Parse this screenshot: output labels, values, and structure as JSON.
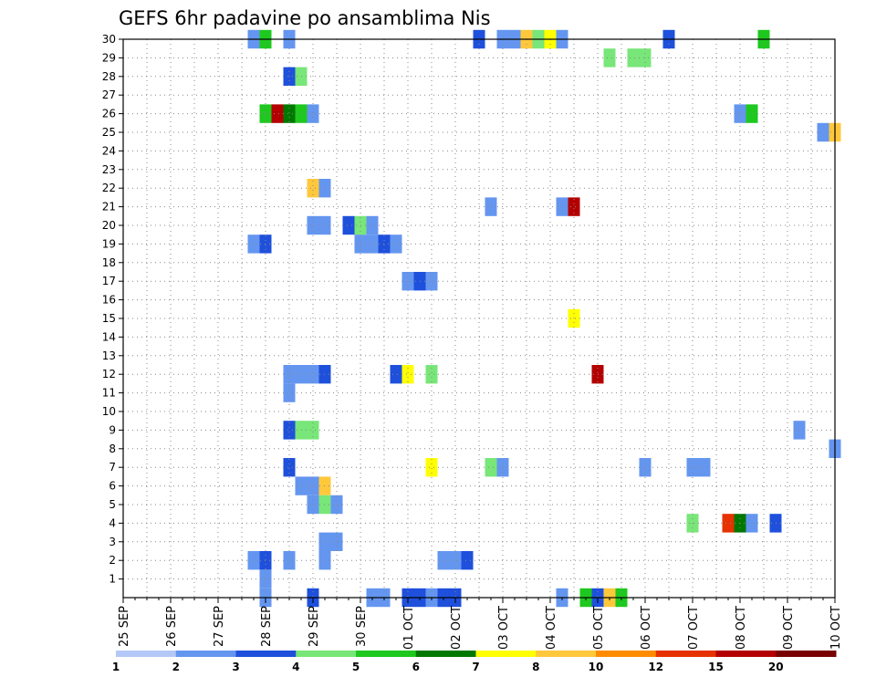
{
  "chart_data": {
    "type": "heatmap",
    "title": "GEFS 6hr padavine po ansamblima Nis",
    "y": [
      1,
      2,
      3,
      4,
      5,
      6,
      7,
      8,
      9,
      10,
      11,
      12,
      13,
      14,
      15,
      16,
      17,
      18,
      19,
      20,
      21,
      22,
      23,
      24,
      25,
      26,
      27,
      28,
      29,
      30
    ],
    "ylim": [
      0,
      30
    ],
    "xlim": [
      0,
      60
    ],
    "x_ticks": [
      {
        "x": 0,
        "label": "25 SEP"
      },
      {
        "x": 4,
        "label": "26 SEP"
      },
      {
        "x": 8,
        "label": "27 SEP"
      },
      {
        "x": 12,
        "label": "28 SEP"
      },
      {
        "x": 16,
        "label": "29 SEP"
      },
      {
        "x": 20,
        "label": "30 SEP"
      },
      {
        "x": 24,
        "label": "01 OCT"
      },
      {
        "x": 28,
        "label": "02 OCT"
      },
      {
        "x": 32,
        "label": "03 OCT"
      },
      {
        "x": 36,
        "label": "04 OCT"
      },
      {
        "x": 40,
        "label": "05 OCT"
      },
      {
        "x": 44,
        "label": "06 OCT"
      },
      {
        "x": 48,
        "label": "07 OCT"
      },
      {
        "x": 52,
        "label": "08 OCT"
      },
      {
        "x": 56,
        "label": "09 OCT"
      },
      {
        "x": 60,
        "label": "10 OCT"
      }
    ],
    "grid": true,
    "colorbar": {
      "labels": [
        "1",
        "2",
        "3",
        "4",
        "5",
        "6",
        "7",
        "8",
        "10",
        "12",
        "15",
        "20"
      ],
      "colors": [
        "#b4c8f8",
        "#6496f0",
        "#1e50dc",
        "#78e678",
        "#1ec81e",
        "#007800",
        "#ffff00",
        "#ffc83c",
        "#ff8c00",
        "#e63200",
        "#b40000",
        "#780000"
      ]
    },
    "cells": [
      [
        11,
        30,
        1
      ],
      [
        12,
        30,
        4
      ],
      [
        14,
        30,
        1
      ],
      [
        30,
        30,
        2
      ],
      [
        32,
        30,
        1
      ],
      [
        33,
        30,
        1
      ],
      [
        34,
        30,
        7
      ],
      [
        35,
        30,
        3
      ],
      [
        36,
        30,
        6
      ],
      [
        37,
        30,
        1
      ],
      [
        46,
        30,
        2
      ],
      [
        54,
        30,
        4
      ],
      [
        41,
        29,
        3
      ],
      [
        43,
        29,
        3
      ],
      [
        44,
        29,
        3
      ],
      [
        14,
        28,
        2
      ],
      [
        15,
        28,
        3
      ],
      [
        12,
        26,
        4
      ],
      [
        13,
        26,
        10
      ],
      [
        14,
        26,
        5
      ],
      [
        15,
        26,
        4
      ],
      [
        16,
        26,
        1
      ],
      [
        52,
        26,
        1
      ],
      [
        53,
        26,
        4
      ],
      [
        59,
        25,
        1
      ],
      [
        60,
        25,
        7
      ],
      [
        16,
        22,
        7
      ],
      [
        17,
        22,
        1
      ],
      [
        31,
        21,
        1
      ],
      [
        37,
        21,
        1
      ],
      [
        38,
        21,
        10
      ],
      [
        16,
        20,
        1
      ],
      [
        17,
        20,
        1
      ],
      [
        19,
        20,
        2
      ],
      [
        20,
        20,
        3
      ],
      [
        21,
        20,
        1
      ],
      [
        11,
        19,
        1
      ],
      [
        12,
        19,
        2
      ],
      [
        20,
        19,
        1
      ],
      [
        21,
        19,
        1
      ],
      [
        22,
        19,
        2
      ],
      [
        23,
        19,
        1
      ],
      [
        24,
        17,
        1
      ],
      [
        25,
        17,
        2
      ],
      [
        26,
        17,
        1
      ],
      [
        38,
        15,
        6
      ],
      [
        14,
        12,
        1
      ],
      [
        15,
        12,
        1
      ],
      [
        16,
        12,
        1
      ],
      [
        17,
        12,
        2
      ],
      [
        23,
        12,
        2
      ],
      [
        24,
        12,
        6
      ],
      [
        26,
        12,
        3
      ],
      [
        40,
        12,
        10
      ],
      [
        14,
        11,
        1
      ],
      [
        14,
        9,
        2
      ],
      [
        15,
        9,
        3
      ],
      [
        16,
        9,
        3
      ],
      [
        57,
        9,
        1
      ],
      [
        60,
        8,
        1
      ],
      [
        14,
        7,
        2
      ],
      [
        26,
        7,
        6
      ],
      [
        31,
        7,
        3
      ],
      [
        32,
        7,
        1
      ],
      [
        44,
        7,
        1
      ],
      [
        48,
        7,
        1
      ],
      [
        49,
        7,
        1
      ],
      [
        15,
        6,
        1
      ],
      [
        16,
        6,
        1
      ],
      [
        17,
        6,
        7
      ],
      [
        16,
        5,
        1
      ],
      [
        17,
        5,
        3
      ],
      [
        18,
        5,
        1
      ],
      [
        48,
        4,
        3
      ],
      [
        51,
        4,
        9
      ],
      [
        52,
        4,
        5
      ],
      [
        53,
        4,
        1
      ],
      [
        55,
        4,
        2
      ],
      [
        17,
        3,
        1
      ],
      [
        18,
        3,
        1
      ],
      [
        11,
        2,
        1
      ],
      [
        12,
        2,
        2
      ],
      [
        14,
        2,
        1
      ],
      [
        17,
        2,
        1
      ],
      [
        27,
        2,
        1
      ],
      [
        28,
        2,
        1
      ],
      [
        29,
        2,
        2
      ],
      [
        12,
        1,
        1
      ],
      [
        12,
        0,
        1
      ],
      [
        16,
        0,
        2
      ],
      [
        21,
        0,
        1
      ],
      [
        22,
        0,
        1
      ],
      [
        24,
        0,
        2
      ],
      [
        25,
        0,
        2
      ],
      [
        26,
        0,
        1
      ],
      [
        27,
        0,
        2
      ],
      [
        28,
        0,
        2
      ],
      [
        37,
        0,
        1
      ],
      [
        39,
        0,
        4
      ],
      [
        40,
        0,
        2
      ],
      [
        41,
        0,
        7
      ],
      [
        42,
        0,
        4
      ]
    ]
  }
}
